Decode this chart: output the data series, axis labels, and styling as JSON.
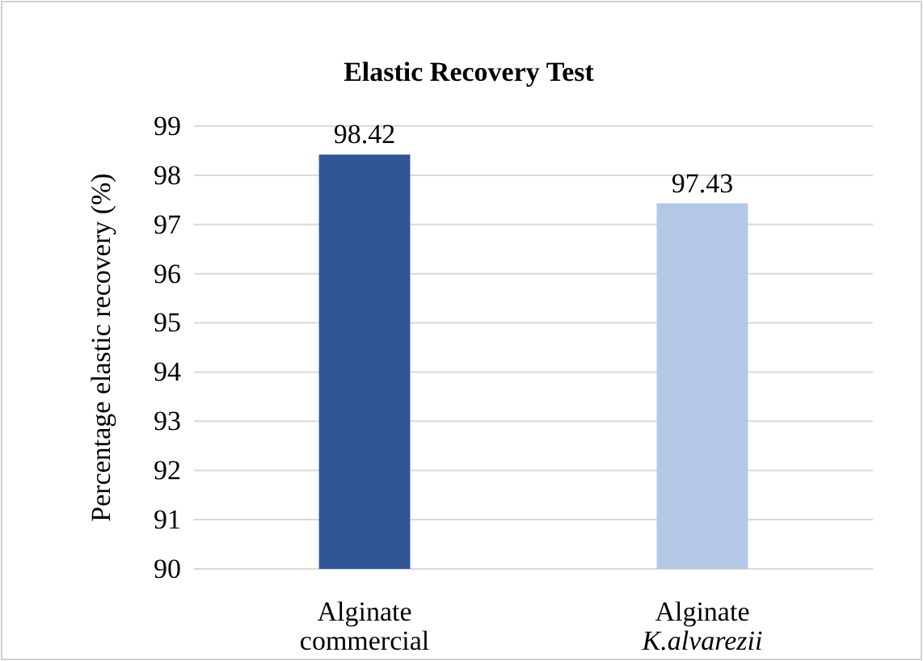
{
  "chart_data": {
    "type": "bar",
    "title": "Elastic Recovery Test",
    "ylabel": "Percentage elastic recovery (%)",
    "categories": [
      "Alginate commercial",
      "Alginate K.alvarezii"
    ],
    "values": [
      98.42,
      97.43
    ],
    "colors": [
      "#2f5597",
      "#b4c7e7"
    ],
    "ylim": [
      90,
      99
    ],
    "yticks": [
      90,
      91,
      92,
      93,
      94,
      95,
      96,
      97,
      98,
      99
    ],
    "grid": "y",
    "data_labels": true
  }
}
